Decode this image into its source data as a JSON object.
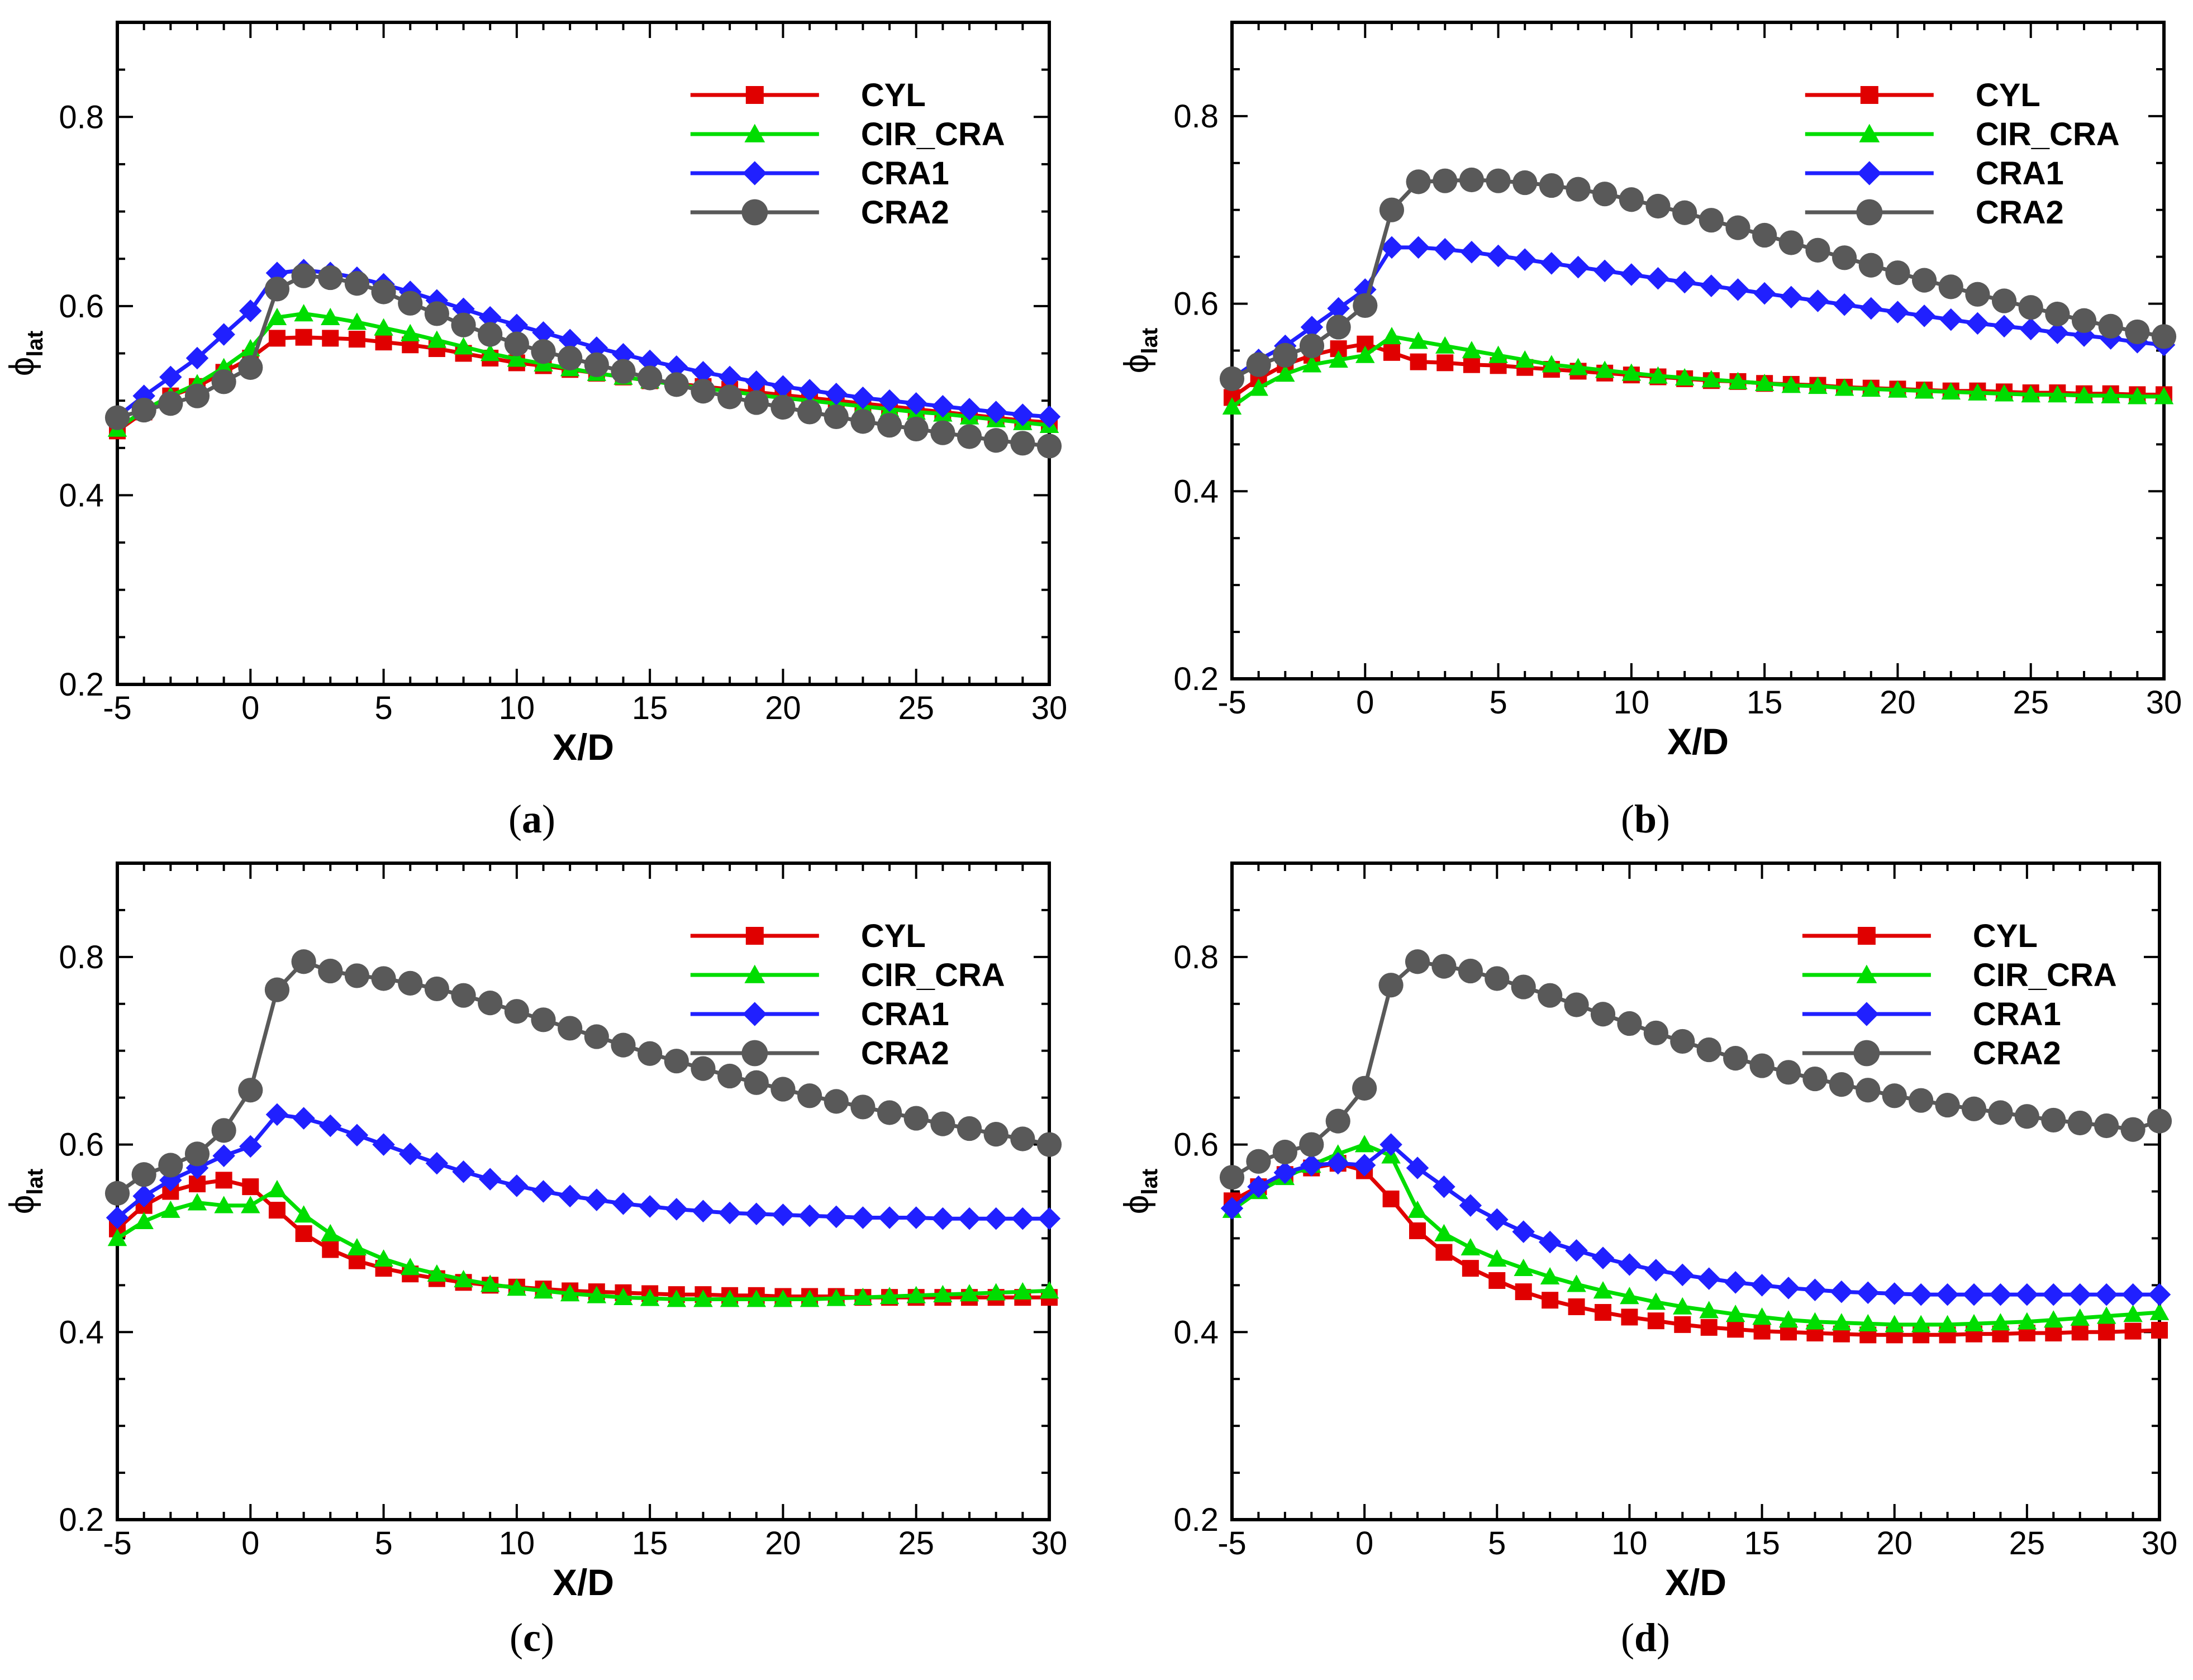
{
  "chart_data": [
    {
      "type": "line",
      "panel_label": "a",
      "xlabel": "X/D",
      "ylabel": "ϕ",
      "ylabel_sub": "lat",
      "xlim": [
        -5,
        30
      ],
      "ylim": [
        0.2,
        0.9
      ],
      "x_ticks": [
        -5,
        0,
        5,
        10,
        15,
        20,
        25,
        30
      ],
      "y_ticks": [
        0.2,
        0.4,
        0.6,
        0.8
      ],
      "x_tick_labels": [
        "-5",
        "0",
        "5",
        "10",
        "15",
        "20",
        "25",
        "30"
      ],
      "y_tick_labels": [
        "0.2",
        "0.4",
        "0.6",
        "0.8"
      ],
      "legend_position": "top-right",
      "x": [
        -5,
        -4,
        -3,
        -2,
        -1,
        0,
        1,
        2,
        3,
        4,
        5,
        6,
        7,
        8,
        9,
        10,
        11,
        12,
        13,
        14,
        15,
        16,
        17,
        18,
        19,
        20,
        21,
        22,
        23,
        24,
        25,
        26,
        27,
        28,
        29,
        30
      ],
      "series": [
        {
          "name": "CYL",
          "color": "#e00000",
          "marker": "square",
          "values": [
            0.468,
            0.488,
            0.505,
            0.515,
            0.53,
            0.545,
            0.566,
            0.567,
            0.566,
            0.565,
            0.562,
            0.559,
            0.555,
            0.55,
            0.545,
            0.54,
            0.537,
            0.533,
            0.529,
            0.525,
            0.521,
            0.518,
            0.515,
            0.512,
            0.509,
            0.506,
            0.503,
            0.5,
            0.497,
            0.494,
            0.491,
            0.488,
            0.485,
            0.482,
            0.479,
            0.477
          ]
        },
        {
          "name": "CIR_CRA",
          "color": "#00dd00",
          "marker": "triangle",
          "values": [
            0.47,
            0.49,
            0.505,
            0.518,
            0.535,
            0.555,
            0.588,
            0.592,
            0.588,
            0.583,
            0.577,
            0.571,
            0.564,
            0.557,
            0.55,
            0.544,
            0.539,
            0.534,
            0.529,
            0.525,
            0.521,
            0.517,
            0.513,
            0.51,
            0.506,
            0.503,
            0.5,
            0.497,
            0.494,
            0.491,
            0.488,
            0.486,
            0.483,
            0.48,
            0.477,
            0.474
          ]
        },
        {
          "name": "CRA1",
          "color": "#2020ff",
          "marker": "diamond",
          "values": [
            0.483,
            0.505,
            0.525,
            0.545,
            0.57,
            0.595,
            0.635,
            0.638,
            0.635,
            0.63,
            0.623,
            0.615,
            0.606,
            0.597,
            0.588,
            0.58,
            0.572,
            0.564,
            0.556,
            0.549,
            0.542,
            0.536,
            0.53,
            0.525,
            0.52,
            0.515,
            0.511,
            0.507,
            0.503,
            0.5,
            0.497,
            0.494,
            0.491,
            0.488,
            0.485,
            0.483
          ]
        },
        {
          "name": "CRA2",
          "color": "#595959",
          "marker": "circle",
          "values": [
            0.482,
            0.49,
            0.497,
            0.505,
            0.52,
            0.535,
            0.618,
            0.632,
            0.63,
            0.624,
            0.615,
            0.603,
            0.592,
            0.58,
            0.57,
            0.56,
            0.552,
            0.545,
            0.538,
            0.531,
            0.524,
            0.517,
            0.51,
            0.504,
            0.498,
            0.493,
            0.488,
            0.483,
            0.478,
            0.474,
            0.47,
            0.466,
            0.462,
            0.458,
            0.455,
            0.452
          ]
        }
      ]
    },
    {
      "type": "line",
      "panel_label": "b",
      "xlabel": "X/D",
      "ylabel": "ϕ",
      "ylabel_sub": "lat",
      "xlim": [
        -5,
        30
      ],
      "ylim": [
        0.2,
        0.9
      ],
      "x_ticks": [
        -5,
        0,
        5,
        10,
        15,
        20,
        25,
        30
      ],
      "y_ticks": [
        0.2,
        0.4,
        0.6,
        0.8
      ],
      "x_tick_labels": [
        "-5",
        "0",
        "5",
        "10",
        "15",
        "20",
        "25",
        "30"
      ],
      "y_tick_labels": [
        "0.2",
        "0.4",
        "0.6",
        "0.8"
      ],
      "legend_position": "top-right",
      "x": [
        -5,
        -4,
        -3,
        -2,
        -1,
        0,
        1,
        2,
        3,
        4,
        5,
        6,
        7,
        8,
        9,
        10,
        11,
        12,
        13,
        14,
        15,
        16,
        17,
        18,
        19,
        20,
        21,
        22,
        23,
        24,
        25,
        26,
        27,
        28,
        29,
        30
      ],
      "series": [
        {
          "name": "CYL",
          "color": "#e00000",
          "marker": "square",
          "values": [
            0.5,
            0.52,
            0.535,
            0.545,
            0.552,
            0.557,
            0.548,
            0.538,
            0.537,
            0.535,
            0.534,
            0.532,
            0.53,
            0.528,
            0.526,
            0.524,
            0.522,
            0.52,
            0.518,
            0.517,
            0.515,
            0.514,
            0.513,
            0.511,
            0.51,
            0.509,
            0.508,
            0.507,
            0.507,
            0.506,
            0.505,
            0.505,
            0.504,
            0.504,
            0.503,
            0.503
          ]
        },
        {
          "name": "CIR_CRA",
          "color": "#00dd00",
          "marker": "triangle",
          "values": [
            0.49,
            0.51,
            0.525,
            0.535,
            0.54,
            0.545,
            0.565,
            0.56,
            0.555,
            0.55,
            0.545,
            0.54,
            0.535,
            0.532,
            0.529,
            0.526,
            0.523,
            0.521,
            0.519,
            0.517,
            0.515,
            0.513,
            0.512,
            0.51,
            0.509,
            0.508,
            0.507,
            0.506,
            0.505,
            0.504,
            0.503,
            0.503,
            0.502,
            0.502,
            0.501,
            0.501
          ]
        },
        {
          "name": "CRA1",
          "color": "#2020ff",
          "marker": "diamond",
          "values": [
            0.52,
            0.54,
            0.555,
            0.575,
            0.595,
            0.615,
            0.66,
            0.66,
            0.658,
            0.655,
            0.651,
            0.647,
            0.643,
            0.639,
            0.635,
            0.631,
            0.627,
            0.623,
            0.619,
            0.615,
            0.611,
            0.607,
            0.603,
            0.599,
            0.595,
            0.591,
            0.587,
            0.583,
            0.579,
            0.576,
            0.573,
            0.569,
            0.566,
            0.563,
            0.559,
            0.556
          ]
        },
        {
          "name": "CRA2",
          "color": "#595959",
          "marker": "circle",
          "values": [
            0.52,
            0.535,
            0.545,
            0.555,
            0.575,
            0.598,
            0.7,
            0.73,
            0.731,
            0.732,
            0.731,
            0.729,
            0.726,
            0.722,
            0.717,
            0.711,
            0.704,
            0.697,
            0.689,
            0.681,
            0.673,
            0.665,
            0.657,
            0.649,
            0.641,
            0.633,
            0.625,
            0.618,
            0.61,
            0.603,
            0.596,
            0.589,
            0.582,
            0.576,
            0.57,
            0.565
          ]
        }
      ]
    },
    {
      "type": "line",
      "panel_label": "c",
      "xlabel": "X/D",
      "ylabel": "ϕ",
      "ylabel_sub": "lat",
      "xlim": [
        -5,
        30
      ],
      "ylim": [
        0.2,
        0.9
      ],
      "x_ticks": [
        -5,
        0,
        5,
        10,
        15,
        20,
        25,
        30
      ],
      "y_ticks": [
        0.2,
        0.4,
        0.6,
        0.8
      ],
      "x_tick_labels": [
        "-5",
        "0",
        "5",
        "10",
        "15",
        "20",
        "25",
        "30"
      ],
      "y_tick_labels": [
        "0.2",
        "0.4",
        "0.6",
        "0.8"
      ],
      "legend_position": "top-right",
      "x": [
        -5,
        -4,
        -3,
        -2,
        -1,
        0,
        1,
        2,
        3,
        4,
        5,
        6,
        7,
        8,
        9,
        10,
        11,
        12,
        13,
        14,
        15,
        16,
        17,
        18,
        19,
        20,
        21,
        22,
        23,
        24,
        25,
        26,
        27,
        28,
        29,
        30
      ],
      "series": [
        {
          "name": "CYL",
          "color": "#e00000",
          "marker": "square",
          "values": [
            0.51,
            0.535,
            0.55,
            0.558,
            0.562,
            0.555,
            0.53,
            0.505,
            0.488,
            0.476,
            0.468,
            0.462,
            0.457,
            0.453,
            0.45,
            0.448,
            0.446,
            0.444,
            0.443,
            0.442,
            0.441,
            0.44,
            0.44,
            0.439,
            0.439,
            0.438,
            0.438,
            0.438,
            0.437,
            0.437,
            0.437,
            0.437,
            0.437,
            0.437,
            0.437,
            0.437
          ]
        },
        {
          "name": "CIR_CRA",
          "color": "#00dd00",
          "marker": "triangle",
          "values": [
            0.5,
            0.518,
            0.53,
            0.538,
            0.535,
            0.535,
            0.552,
            0.525,
            0.505,
            0.49,
            0.478,
            0.469,
            0.462,
            0.456,
            0.451,
            0.447,
            0.444,
            0.441,
            0.439,
            0.437,
            0.436,
            0.435,
            0.435,
            0.435,
            0.435,
            0.435,
            0.435,
            0.436,
            0.437,
            0.438,
            0.439,
            0.44,
            0.441,
            0.442,
            0.443,
            0.444
          ]
        },
        {
          "name": "CRA1",
          "color": "#2020ff",
          "marker": "diamond",
          "values": [
            0.522,
            0.545,
            0.562,
            0.575,
            0.588,
            0.598,
            0.632,
            0.628,
            0.62,
            0.61,
            0.6,
            0.59,
            0.58,
            0.571,
            0.563,
            0.556,
            0.55,
            0.545,
            0.541,
            0.537,
            0.534,
            0.531,
            0.529,
            0.527,
            0.526,
            0.525,
            0.524,
            0.523,
            0.522,
            0.522,
            0.522,
            0.521,
            0.521,
            0.521,
            0.521,
            0.521
          ]
        },
        {
          "name": "CRA2",
          "color": "#595959",
          "marker": "circle",
          "values": [
            0.548,
            0.568,
            0.578,
            0.59,
            0.615,
            0.658,
            0.765,
            0.795,
            0.785,
            0.78,
            0.777,
            0.772,
            0.766,
            0.759,
            0.751,
            0.742,
            0.733,
            0.724,
            0.715,
            0.706,
            0.697,
            0.689,
            0.681,
            0.673,
            0.666,
            0.659,
            0.652,
            0.646,
            0.64,
            0.634,
            0.628,
            0.622,
            0.617,
            0.611,
            0.606,
            0.6
          ]
        }
      ]
    },
    {
      "type": "line",
      "panel_label": "d",
      "xlabel": "X/D",
      "ylabel": "ϕ",
      "ylabel_sub": "lat",
      "xlim": [
        -5,
        30
      ],
      "ylim": [
        0.2,
        0.9
      ],
      "x_ticks": [
        -5,
        0,
        5,
        10,
        15,
        20,
        25,
        30
      ],
      "y_ticks": [
        0.2,
        0.4,
        0.6,
        0.8
      ],
      "x_tick_labels": [
        "-5",
        "0",
        "5",
        "10",
        "15",
        "20",
        "25",
        "30"
      ],
      "y_tick_labels": [
        "0.2",
        "0.4",
        "0.6",
        "0.8"
      ],
      "legend_position": "top-right",
      "x": [
        -5,
        -4,
        -3,
        -2,
        -1,
        0,
        1,
        2,
        3,
        4,
        5,
        6,
        7,
        8,
        9,
        10,
        11,
        12,
        13,
        14,
        15,
        16,
        17,
        18,
        19,
        20,
        21,
        22,
        23,
        24,
        25,
        26,
        27,
        28,
        29,
        30
      ],
      "series": [
        {
          "name": "CYL",
          "color": "#e00000",
          "marker": "square",
          "values": [
            0.54,
            0.555,
            0.568,
            0.575,
            0.58,
            0.572,
            0.542,
            0.508,
            0.485,
            0.468,
            0.455,
            0.443,
            0.434,
            0.427,
            0.421,
            0.416,
            0.412,
            0.408,
            0.405,
            0.403,
            0.401,
            0.4,
            0.399,
            0.398,
            0.397,
            0.397,
            0.397,
            0.397,
            0.398,
            0.398,
            0.399,
            0.399,
            0.4,
            0.4,
            0.401,
            0.402
          ]
        },
        {
          "name": "CIR_CRA",
          "color": "#00dd00",
          "marker": "triangle",
          "values": [
            0.53,
            0.55,
            0.565,
            0.578,
            0.59,
            0.6,
            0.588,
            0.53,
            0.505,
            0.49,
            0.478,
            0.468,
            0.459,
            0.451,
            0.444,
            0.438,
            0.432,
            0.427,
            0.423,
            0.419,
            0.416,
            0.413,
            0.411,
            0.41,
            0.409,
            0.408,
            0.408,
            0.408,
            0.409,
            0.41,
            0.411,
            0.413,
            0.415,
            0.417,
            0.419,
            0.421
          ]
        },
        {
          "name": "CRA1",
          "color": "#2020ff",
          "marker": "diamond",
          "values": [
            0.532,
            0.555,
            0.57,
            0.578,
            0.58,
            0.578,
            0.6,
            0.575,
            0.555,
            0.535,
            0.52,
            0.507,
            0.496,
            0.487,
            0.479,
            0.472,
            0.466,
            0.461,
            0.457,
            0.453,
            0.45,
            0.447,
            0.445,
            0.443,
            0.442,
            0.441,
            0.44,
            0.44,
            0.44,
            0.44,
            0.44,
            0.44,
            0.44,
            0.44,
            0.44,
            0.44
          ]
        },
        {
          "name": "CRA2",
          "color": "#595959",
          "marker": "circle",
          "values": [
            0.565,
            0.582,
            0.592,
            0.6,
            0.625,
            0.66,
            0.77,
            0.795,
            0.79,
            0.785,
            0.777,
            0.768,
            0.759,
            0.749,
            0.739,
            0.729,
            0.719,
            0.71,
            0.701,
            0.692,
            0.684,
            0.677,
            0.67,
            0.664,
            0.658,
            0.652,
            0.647,
            0.642,
            0.638,
            0.634,
            0.63,
            0.626,
            0.623,
            0.62,
            0.616,
            0.625
          ]
        }
      ]
    }
  ]
}
